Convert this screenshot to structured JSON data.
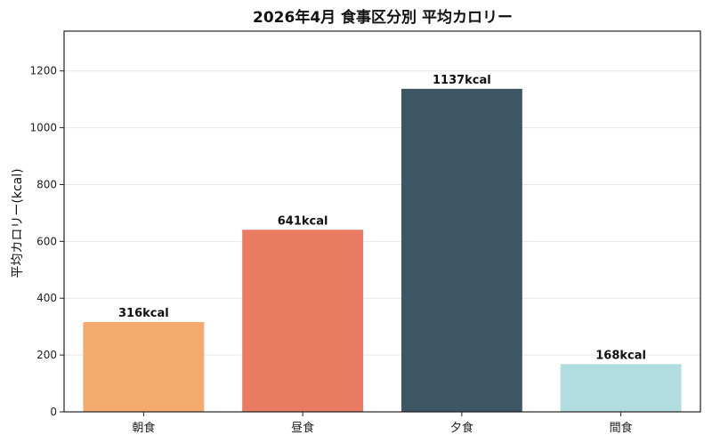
{
  "chart_data": {
    "type": "bar",
    "title": "2026年4月 食事区分別 平均カロリー",
    "xlabel": "",
    "ylabel": "平均カロリー(kcal)",
    "categories": [
      "朝食",
      "昼食",
      "夕食",
      "間食"
    ],
    "values": [
      316,
      641,
      1137,
      168
    ],
    "data_labels": [
      "316kcal",
      "641kcal",
      "1137kcal",
      "168kcal"
    ],
    "colors": [
      "#F4A96D",
      "#E97B62",
      "#3D5663",
      "#B2DDE0"
    ],
    "ylim": [
      0,
      1340
    ],
    "yticks": [
      0,
      200,
      400,
      600,
      800,
      1000,
      1200
    ],
    "grid": true,
    "legend": "none"
  }
}
